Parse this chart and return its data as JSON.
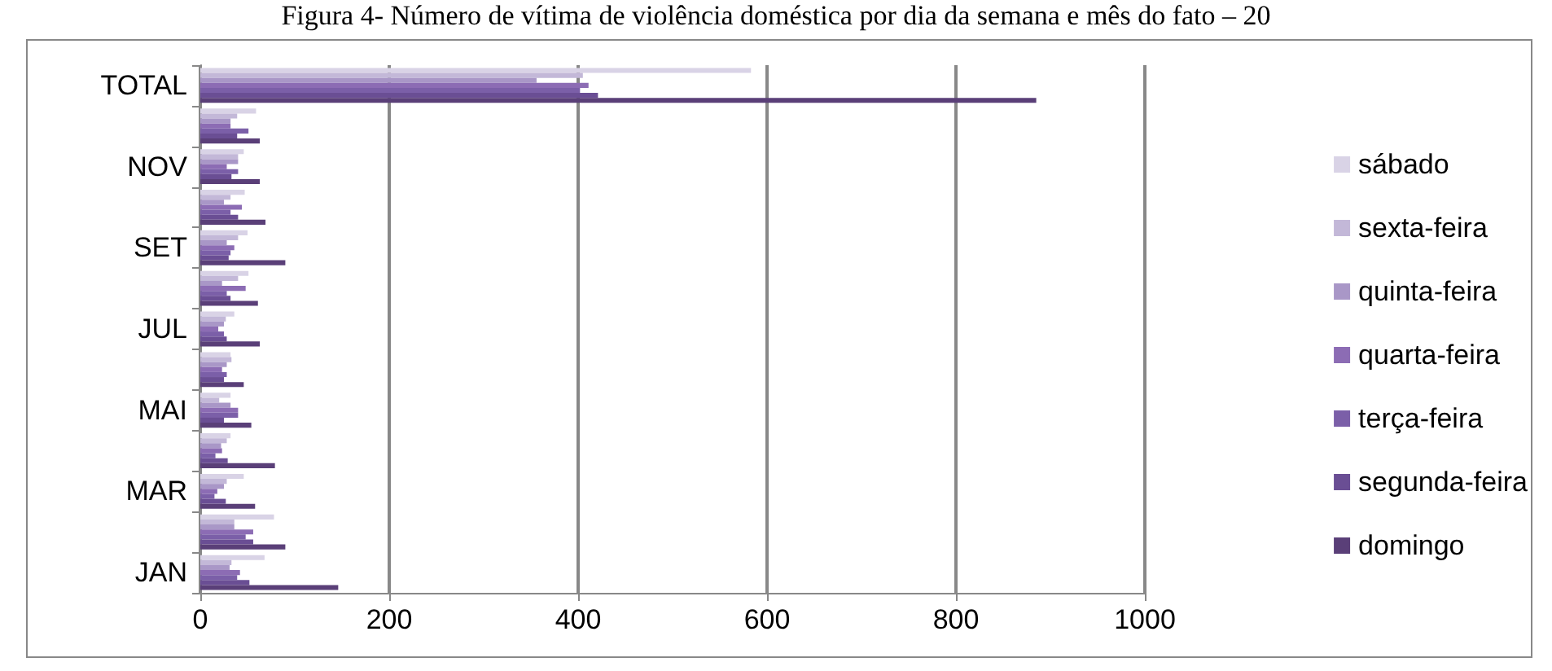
{
  "chart_data": {
    "type": "bar",
    "orientation": "horizontal",
    "title": "Figura 4- Número de vítima de violência doméstica por dia da semana e mês do fato – 20",
    "categories": [
      "TOTAL",
      null,
      "NOV",
      null,
      "SET",
      null,
      "JUL",
      null,
      "MAI",
      null,
      "MAR",
      null,
      "JAN"
    ],
    "series": [
      {
        "name": "sábado",
        "color": "#d9d3e6",
        "values": [
          583,
          59,
          46,
          47,
          50,
          51,
          36,
          32,
          32,
          32,
          46,
          78,
          68
        ]
      },
      {
        "name": "sexta-feira",
        "color": "#c3b8d8",
        "values": [
          405,
          39,
          40,
          32,
          40,
          40,
          27,
          33,
          20,
          28,
          28,
          36,
          33
        ]
      },
      {
        "name": "quinta-feira",
        "color": "#a997c7",
        "values": [
          356,
          32,
          40,
          25,
          28,
          23,
          25,
          28,
          32,
          22,
          25,
          36,
          31
        ]
      },
      {
        "name": "quarta-feira",
        "color": "#8c6cb4",
        "values": [
          411,
          32,
          28,
          44,
          36,
          48,
          19,
          23,
          40,
          23,
          18,
          56,
          42
        ]
      },
      {
        "name": "terça-feira",
        "color": "#7b5fa8",
        "values": [
          402,
          51,
          40,
          32,
          32,
          28,
          25,
          28,
          40,
          16,
          15,
          48,
          39
        ]
      },
      {
        "name": "segunda-feira",
        "color": "#6a4e94",
        "values": [
          421,
          39,
          33,
          40,
          30,
          32,
          28,
          25,
          25,
          29,
          27,
          56,
          52
        ]
      },
      {
        "name": "domingo",
        "color": "#5a3f78",
        "values": [
          885,
          63,
          63,
          69,
          90,
          61,
          63,
          46,
          54,
          79,
          58,
          90,
          146
        ]
      }
    ],
    "xlim": [
      0,
      1000
    ],
    "xticks": [
      0,
      200,
      400,
      600,
      800,
      1000
    ],
    "grid": "x",
    "legend": "right"
  }
}
